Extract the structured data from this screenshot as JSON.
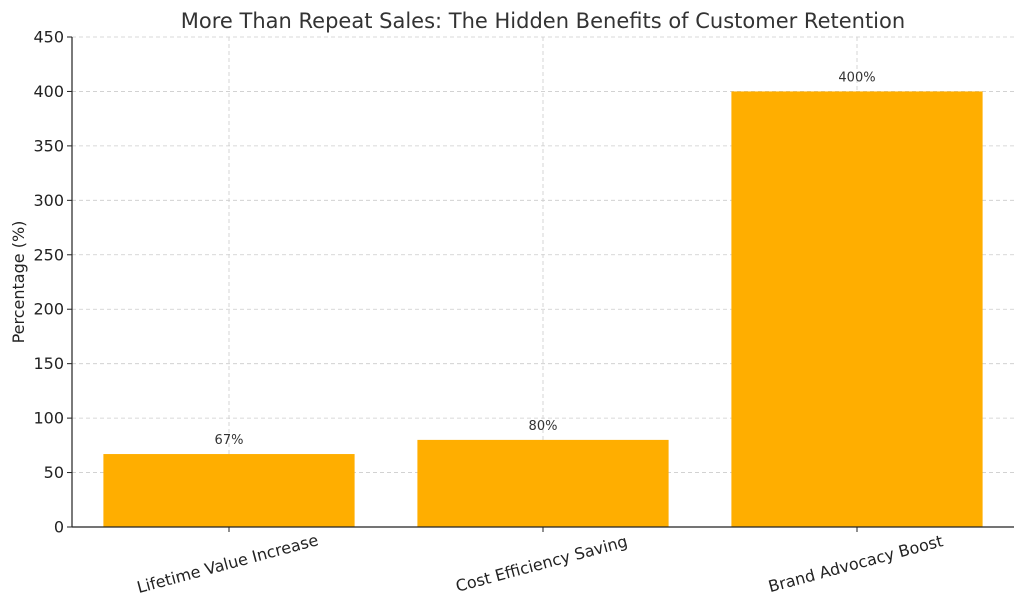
{
  "chart_data": {
    "type": "bar",
    "title": "More Than Repeat Sales: The Hidden Benefits of Customer Retention",
    "xlabel": "",
    "ylabel": "Percentage (%)",
    "categories": [
      "Lifetime Value Increase",
      "Cost Efficiency Saving",
      "Brand Advocacy Boost"
    ],
    "values": [
      67,
      80,
      400
    ],
    "data_labels": [
      "67%",
      "80%",
      "400%"
    ],
    "ylim": [
      0,
      450
    ],
    "yticks": [
      0,
      50,
      100,
      150,
      200,
      250,
      300,
      350,
      400,
      450
    ],
    "grid": true,
    "bar_color": "#FFAE00"
  }
}
